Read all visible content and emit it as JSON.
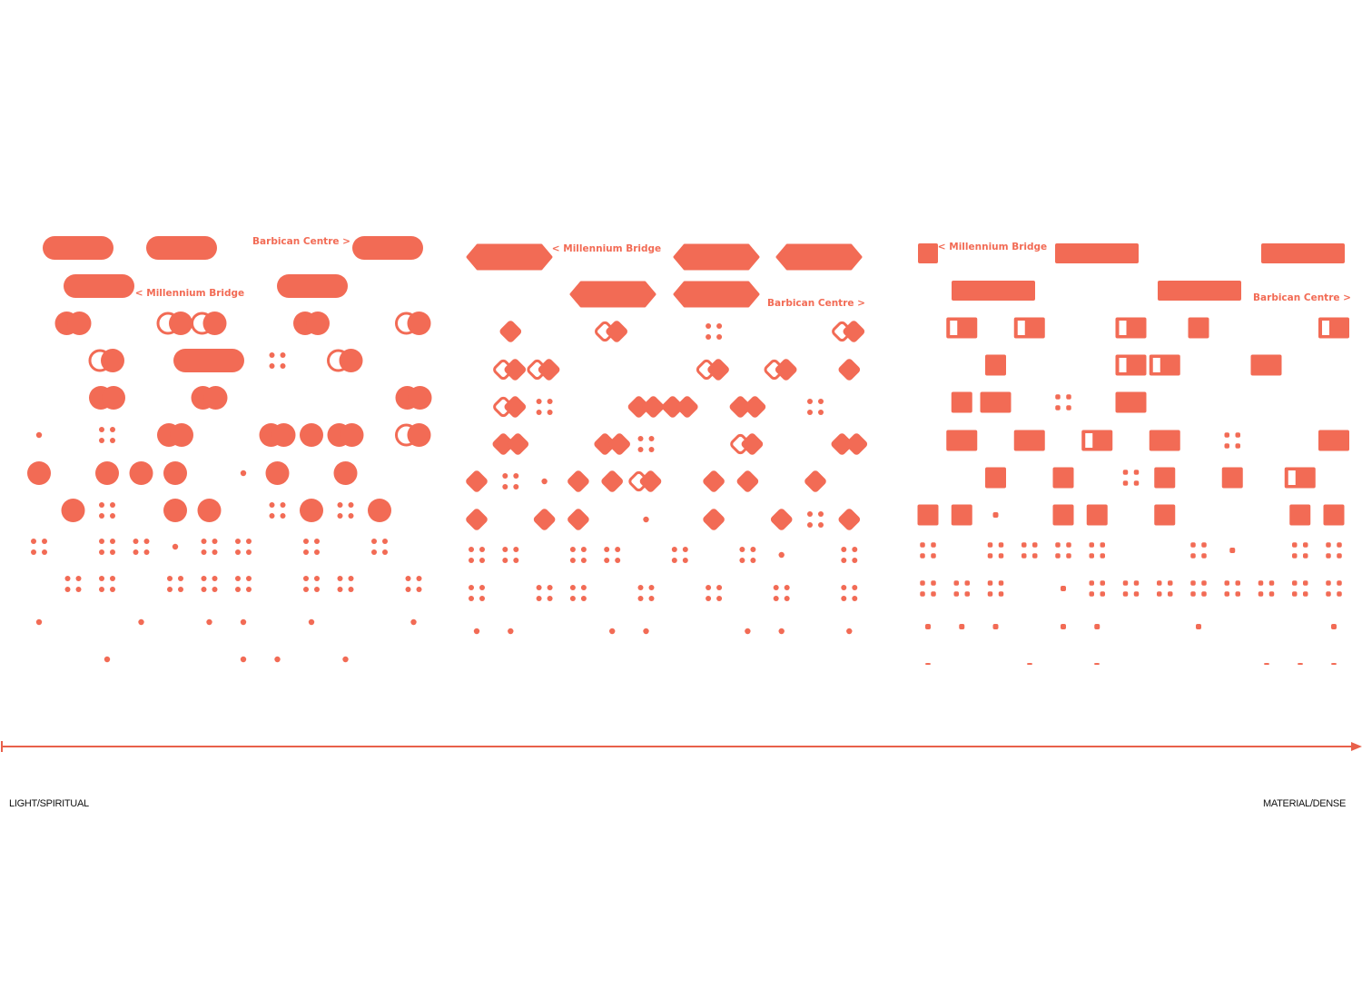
{
  "panels": [
    {
      "barbican": "Barbican Centre >",
      "millennium": "< Millennium Bridge"
    },
    {
      "barbican": "Barbican Centre >",
      "millennium": "< Millennium Bridge"
    },
    {
      "barbican": "Barbican Centre >",
      "millennium": "< Millennium Bridge"
    }
  ],
  "axis": {
    "left": "LIGHT/SPIRITUAL",
    "right": "MATERIAL/DENSE"
  }
}
